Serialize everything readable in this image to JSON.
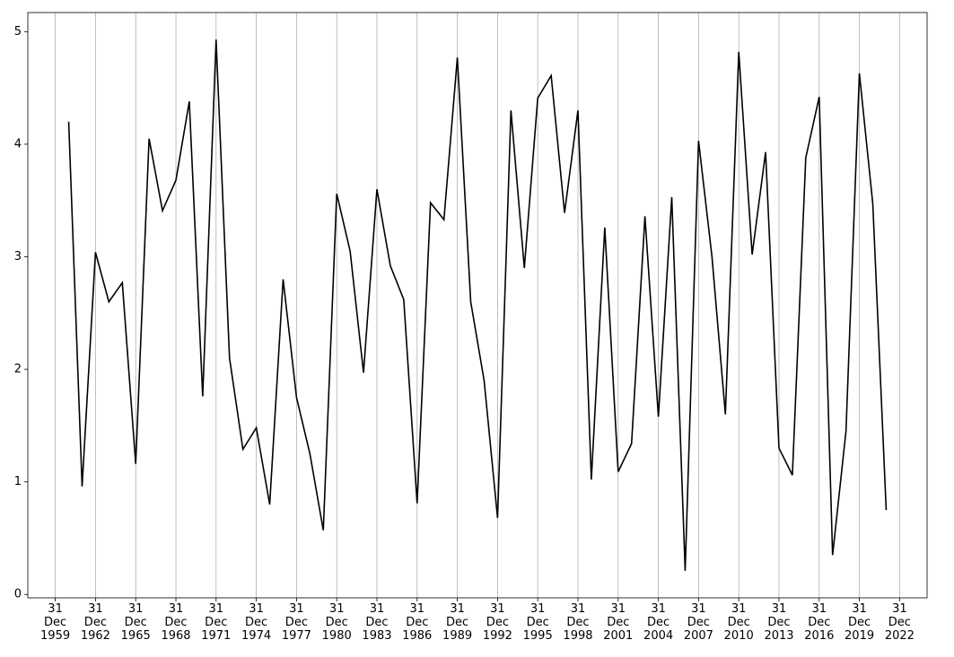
{
  "chart_data": {
    "type": "line",
    "color": "#000000",
    "grid": "x",
    "x": [
      "1960-12-31",
      "1961-12-31",
      "1962-12-31",
      "1963-12-31",
      "1964-12-31",
      "1965-12-31",
      "1966-12-31",
      "1967-12-31",
      "1968-12-31",
      "1969-12-31",
      "1970-12-31",
      "1971-12-31",
      "1972-12-31",
      "1973-12-31",
      "1974-12-31",
      "1975-12-31",
      "1976-12-31",
      "1977-12-31",
      "1978-12-31",
      "1979-12-31",
      "1980-12-31",
      "1981-12-31",
      "1982-12-31",
      "1983-12-31",
      "1984-12-31",
      "1985-12-31",
      "1986-12-31",
      "1987-12-31",
      "1988-12-31",
      "1989-12-31",
      "1990-12-31",
      "1991-12-31",
      "1992-12-31",
      "1993-12-31",
      "1994-12-31",
      "1995-12-31",
      "1996-12-31",
      "1997-12-31",
      "1998-12-31",
      "1999-12-31",
      "2000-12-31",
      "2001-12-31",
      "2002-12-31",
      "2003-12-31",
      "2004-12-31",
      "2005-12-31",
      "2006-12-31",
      "2007-12-31",
      "2008-12-31",
      "2009-12-31",
      "2010-12-31",
      "2011-12-31",
      "2012-12-31",
      "2013-12-31",
      "2014-12-31",
      "2015-12-31",
      "2016-12-31",
      "2017-12-31",
      "2018-12-31",
      "2019-12-31",
      "2020-12-31",
      "2021-12-31"
    ],
    "values": [
      4.2,
      0.96,
      3.04,
      2.6,
      2.77,
      1.16,
      4.05,
      3.41,
      3.68,
      4.38,
      1.76,
      4.93,
      2.1,
      1.29,
      1.48,
      0.8,
      2.8,
      1.75,
      1.25,
      0.57,
      3.56,
      3.05,
      1.97,
      3.6,
      2.92,
      2.62,
      0.81,
      3.48,
      3.33,
      4.77,
      2.6,
      1.9,
      0.68,
      4.3,
      2.9,
      4.41,
      4.61,
      3.39,
      4.3,
      1.02,
      3.26,
      1.09,
      1.34,
      3.36,
      1.58,
      3.53,
      0.21,
      4.03,
      3.0,
      1.6,
      4.82,
      3.02,
      3.93,
      1.3,
      1.06,
      3.88,
      4.42,
      0.35,
      1.45,
      4.63,
      3.47,
      0.75
    ],
    "xlim": [
      "1957-12-13",
      "2025-01-18"
    ],
    "xticks": [
      {
        "value": "1959-12-31",
        "label": "31 Dec 1959"
      },
      {
        "value": "1962-12-31",
        "label": "31 Dec 1962"
      },
      {
        "value": "1965-12-31",
        "label": "31 Dec 1965"
      },
      {
        "value": "1968-12-31",
        "label": "31 Dec 1968"
      },
      {
        "value": "1971-12-31",
        "label": "31 Dec 1971"
      },
      {
        "value": "1974-12-31",
        "label": "31 Dec 1974"
      },
      {
        "value": "1977-12-31",
        "label": "31 Dec 1977"
      },
      {
        "value": "1980-12-31",
        "label": "31 Dec 1980"
      },
      {
        "value": "1983-12-31",
        "label": "31 Dec 1983"
      },
      {
        "value": "1986-12-31",
        "label": "31 Dec 1986"
      },
      {
        "value": "1989-12-31",
        "label": "31 Dec 1989"
      },
      {
        "value": "1992-12-31",
        "label": "31 Dec 1992"
      },
      {
        "value": "1995-12-31",
        "label": "31 Dec 1995"
      },
      {
        "value": "1998-12-31",
        "label": "31 Dec 1998"
      },
      {
        "value": "2001-12-31",
        "label": "31 Dec 2001"
      },
      {
        "value": "2004-12-31",
        "label": "31 Dec 2004"
      },
      {
        "value": "2007-12-31",
        "label": "31 Dec 2007"
      },
      {
        "value": "2010-12-31",
        "label": "31 Dec 2010"
      },
      {
        "value": "2013-12-31",
        "label": "31 Dec 2013"
      },
      {
        "value": "2016-12-31",
        "label": "31 Dec 2016"
      },
      {
        "value": "2019-12-31",
        "label": "31 Dec 2019"
      },
      {
        "value": "2022-12-31",
        "label": "31 Dec 2022"
      }
    ],
    "ylim": [
      -0.03,
      5.17
    ],
    "yticks": [
      0,
      1,
      2,
      3,
      4,
      5
    ]
  }
}
